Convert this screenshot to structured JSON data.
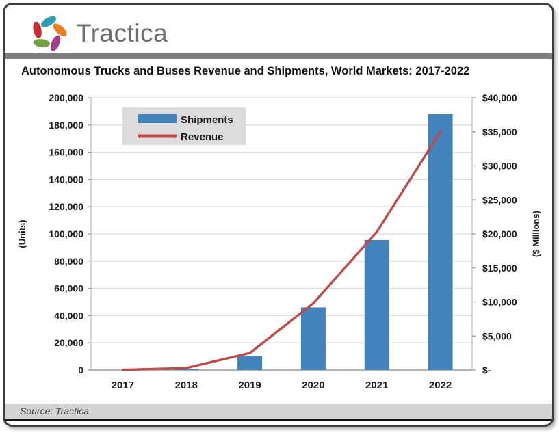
{
  "header": {
    "logo_text": "Tractica",
    "logo_text_color": "#6c6d70",
    "logo_petals": [
      {
        "name": "teal",
        "color": "#2e9fb4"
      },
      {
        "name": "orange",
        "color": "#e87d22"
      },
      {
        "name": "purple",
        "color": "#a23f8d"
      },
      {
        "name": "green",
        "color": "#74a13f"
      },
      {
        "name": "red",
        "color": "#cb2c30"
      }
    ]
  },
  "title": "Autonomous Trucks and Buses Revenue and Shipments, World Markets: 2017-2022",
  "footer": {
    "source": "Source: Tractica"
  },
  "chart_data": {
    "type": "bar",
    "subtype": "bar-line-combo-dual-axis",
    "title": "Autonomous Trucks and Buses Revenue and Shipments, World Markets: 2017-2022",
    "categories": [
      "2017",
      "2018",
      "2019",
      "2020",
      "2021",
      "2022"
    ],
    "series": [
      {
        "name": "Shipments",
        "type": "bar",
        "axis": "left",
        "color": "#4383bc",
        "values": [
          0,
          800,
          10500,
          46000,
          95500,
          188000
        ]
      },
      {
        "name": "Revenue",
        "type": "line",
        "axis": "right",
        "color": "#bf4a47",
        "values": [
          30,
          300,
          2500,
          9800,
          20300,
          35000
        ]
      }
    ],
    "left_axis": {
      "label": "(Units)",
      "min": 0,
      "max": 200000,
      "tick_step": 20000,
      "tick_labels": [
        "0",
        "20,000",
        "40,000",
        "60,000",
        "80,000",
        "100,000",
        "120,000",
        "140,000",
        "160,000",
        "180,000",
        "200,000"
      ]
    },
    "right_axis": {
      "label": "($ Millions)",
      "min": 0,
      "max": 40000,
      "tick_step": 5000,
      "tick_labels": [
        "$-",
        "$5,000",
        "$10,000",
        "$15,000",
        "$20,000",
        "$25,000",
        "$30,000",
        "$35,000",
        "$40,000"
      ]
    },
    "legend": {
      "position": "inside-top-left",
      "background": "#dcdcdc",
      "items": [
        {
          "label": "Shipments",
          "swatch": "bar"
        },
        {
          "label": "Revenue",
          "swatch": "line"
        }
      ]
    },
    "grid": true,
    "grid_color": "#d9d9d9",
    "axis_line_color": "#9a9a9a",
    "tick_label_color": "#1a1a1a"
  }
}
